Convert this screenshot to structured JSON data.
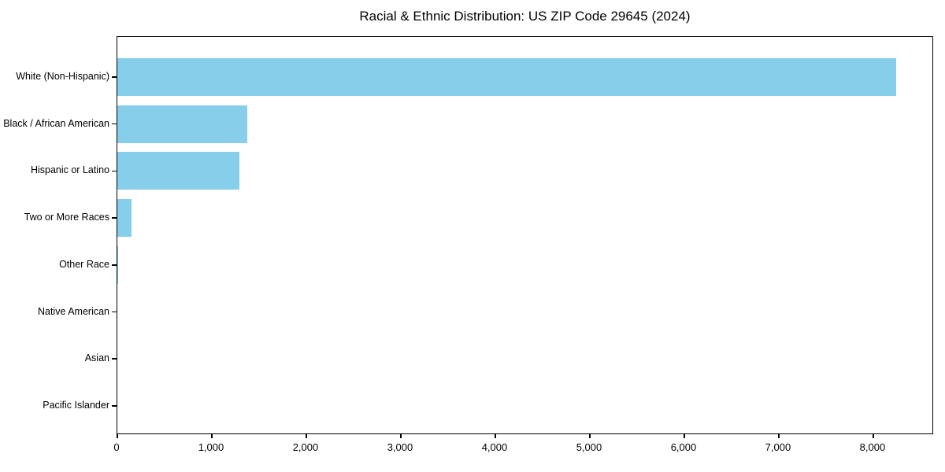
{
  "chart_data": {
    "type": "bar",
    "orientation": "horizontal",
    "title": "Racial & Ethnic Distribution: US ZIP Code 29645 (2024)",
    "xlabel": "",
    "ylabel": "",
    "categories": [
      "White (Non-Hispanic)",
      "Black / African American",
      "Hispanic or Latino",
      "Two or More Races",
      "Other Race",
      "Native American",
      "Asian",
      "Pacific Islander"
    ],
    "values": [
      8240,
      1375,
      1290,
      150,
      10,
      0,
      0,
      0
    ],
    "xlim": [
      0,
      8642
    ],
    "x_ticks": [
      0,
      1000,
      2000,
      3000,
      4000,
      5000,
      6000,
      7000,
      8000
    ],
    "x_tick_labels": [
      "0",
      "1,000",
      "2,000",
      "3,000",
      "4,000",
      "5,000",
      "6,000",
      "7,000",
      "8,000"
    ],
    "bar_color": "#87CEEB",
    "axis_color": "#000000",
    "background_color": "#ffffff",
    "grid": false,
    "legend": null
  }
}
